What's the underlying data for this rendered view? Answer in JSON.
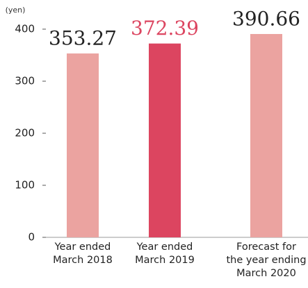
{
  "chart_data": {
    "type": "bar",
    "unit_label": "(yen)",
    "categories": [
      "Year ended\nMarch 2018",
      "Year ended\nMarch 2019",
      "Forecast for\nthe year ending\nMarch 2020"
    ],
    "values": [
      353.27,
      372.39,
      390.66
    ],
    "colors": [
      "#eba3a0",
      "#dc4560",
      "#eba3a0"
    ],
    "value_label_colors": [
      "#222222",
      "#dc4560",
      "#222222"
    ],
    "ylim": [
      0,
      400
    ],
    "yticks": [
      0,
      100,
      200,
      300,
      400
    ],
    "grid": false
  }
}
